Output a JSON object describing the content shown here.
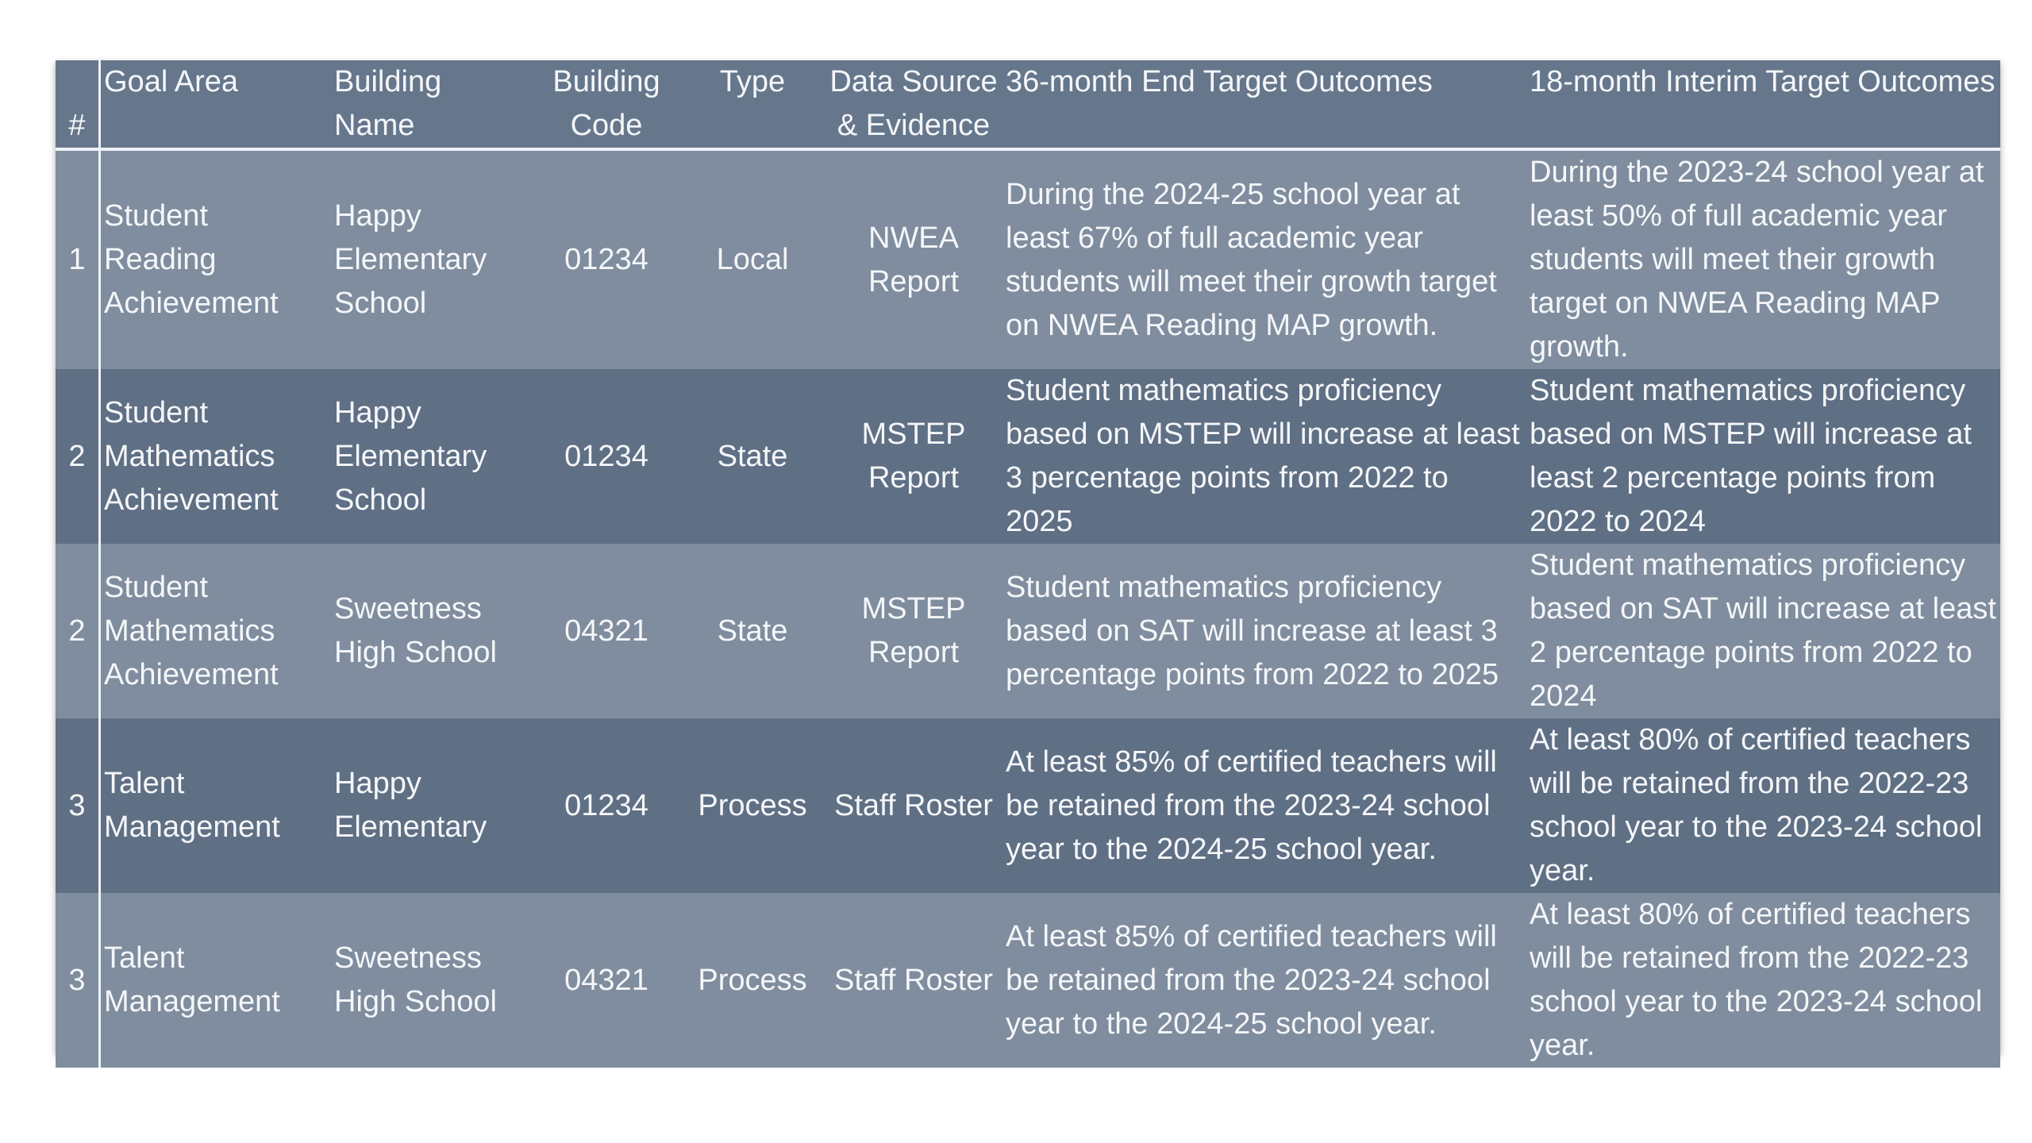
{
  "table": {
    "headers": {
      "num": "#",
      "goal_area": "Goal Area",
      "building_name": "Building Name",
      "building_code": "Building Code",
      "type": "Type",
      "data_source": "Data Source & Evidence",
      "end_target": "36-month End Target Outcomes",
      "interim_target": "18-month Interim Target Outcomes"
    },
    "rows": [
      {
        "num": "1",
        "goal_area": "Student Reading Achievement",
        "building_name": "Happy Elementary School",
        "building_code": "01234",
        "type": "Local",
        "data_source": "NWEA Report",
        "end_target": "During the 2024-25 school year at least 67% of full academic year students will meet their growth target on NWEA Reading MAP growth.",
        "interim_target": "During the 2023-24 school year at least 50% of full academic year students will meet their growth target on NWEA Reading MAP growth."
      },
      {
        "num": "2",
        "goal_area": "Student Mathematics Achievement",
        "building_name": "Happy Elementary School",
        "building_code": "01234",
        "type": "State",
        "data_source": "MSTEP Report",
        "end_target": "Student mathematics proficiency based on MSTEP will increase at least 3 percentage points from 2022 to 2025",
        "interim_target": "Student mathematics proficiency based on MSTEP will increase at least 2 percentage points from 2022 to 2024"
      },
      {
        "num": "2",
        "goal_area": "Student Mathematics Achievement",
        "building_name": "Sweetness High School",
        "building_code": "04321",
        "type": "State",
        "data_source": "MSTEP Report",
        "end_target": "Student mathematics proficiency based on SAT will increase at least 3 percentage points from 2022 to 2025",
        "interim_target": "Student mathematics proficiency based on SAT  will increase at least 2 percentage points from 2022 to 2024"
      },
      {
        "num": "3",
        "goal_area": "Talent Management",
        "building_name": "Happy Elementary",
        "building_code": "01234",
        "type": "Process",
        "data_source": "Staff Roster",
        "end_target": "At least 85% of certified teachers will be retained from the 2023-24 school year to the 2024-25 school year.",
        "interim_target": "At least 80% of certified teachers will be retained from the 2022-23 school year to the 2023-24 school year."
      },
      {
        "num": "3",
        "goal_area": "Talent Management",
        "building_name": "Sweetness High School",
        "building_code": "04321",
        "type": "Process",
        "data_source": "Staff Roster",
        "end_target": "At least 85% of certified teachers will be retained from the 2023-24 school year to the 2024-25 school year.",
        "interim_target": "At least 80% of certified teachers will be retained from the 2022-23 school year to the 2023-24 school year."
      }
    ]
  }
}
